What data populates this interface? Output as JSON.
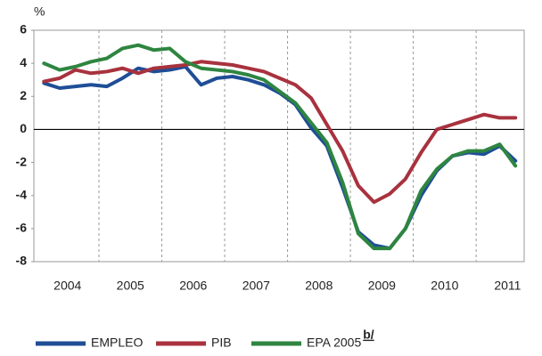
{
  "chart_data": {
    "type": "line",
    "y_label": "%",
    "categories": [
      "2004",
      null,
      null,
      null,
      "2005",
      null,
      null,
      null,
      "2006",
      null,
      null,
      null,
      "2007",
      null,
      null,
      null,
      "2008",
      null,
      null,
      null,
      "2009",
      null,
      null,
      null,
      "2010",
      null,
      null,
      null,
      "2011",
      null,
      null
    ],
    "series": [
      {
        "name": "EMPLEO",
        "color": "#1f4e96",
        "values": [
          2.8,
          2.5,
          2.6,
          2.7,
          2.6,
          3.1,
          3.7,
          3.5,
          3.6,
          3.8,
          2.7,
          3.1,
          3.2,
          3.0,
          2.7,
          2.2,
          1.5,
          0.1,
          -1.0,
          -3.5,
          -6.2,
          -7.0,
          -7.2,
          -6.0,
          -4.0,
          -2.5,
          -1.6,
          -1.4,
          -1.5,
          -1.0,
          -1.9
        ]
      },
      {
        "name": "PIB",
        "color": "#a8323e",
        "values": [
          2.9,
          3.1,
          3.6,
          3.4,
          3.5,
          3.7,
          3.4,
          3.7,
          3.8,
          3.9,
          4.1,
          4.0,
          3.9,
          3.7,
          3.5,
          3.1,
          2.7,
          1.9,
          0.3,
          -1.3,
          -3.4,
          -4.4,
          -3.9,
          -3.0,
          -1.4,
          0.0,
          0.3,
          0.6,
          0.9,
          0.7,
          0.7
        ]
      },
      {
        "name": "EPA 2005",
        "name_note": "b/",
        "color": "#2e8540",
        "values": [
          4.0,
          3.6,
          3.8,
          4.1,
          4.3,
          4.9,
          5.1,
          4.8,
          4.9,
          4.1,
          3.7,
          3.6,
          3.5,
          3.3,
          3.0,
          2.3,
          1.6,
          0.4,
          -0.8,
          -3.2,
          -6.3,
          -7.2,
          -7.2,
          -6.0,
          -3.7,
          -2.4,
          -1.6,
          -1.3,
          -1.3,
          -0.9,
          -2.2
        ]
      }
    ],
    "ylim": [
      -8,
      6
    ],
    "yticks": [
      -8,
      -6,
      -4,
      -2,
      0,
      2,
      4,
      6
    ]
  }
}
